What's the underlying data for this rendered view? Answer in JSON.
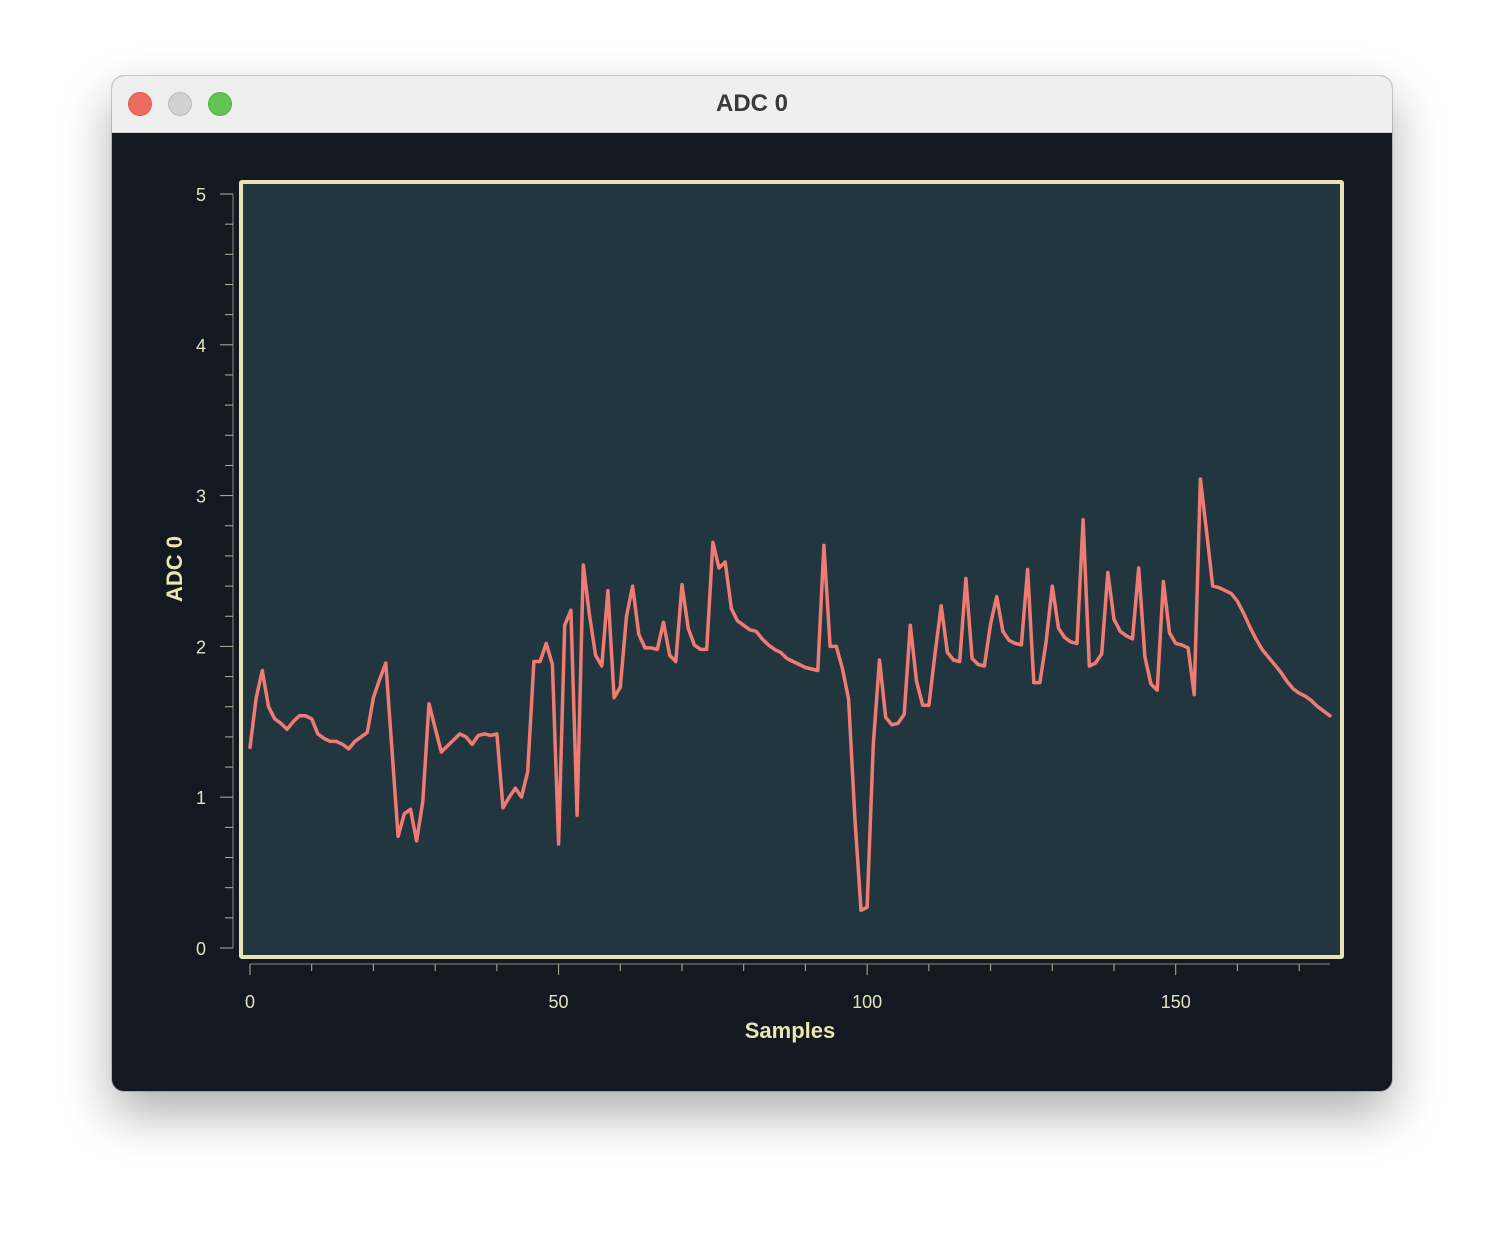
{
  "window": {
    "title": "ADC 0"
  },
  "colors": {
    "window_bg": "#131920",
    "plot_bg": "#223640",
    "frame": "#e8e3b5",
    "line": "#f07b72",
    "label": "#ebe5b0"
  },
  "chart_data": {
    "type": "line",
    "title": "",
    "xlabel": "Samples",
    "ylabel": "ADC 0",
    "xlim": [
      0,
      175
    ],
    "ylim": [
      0,
      5
    ],
    "x_ticks": [
      0,
      50,
      100,
      150
    ],
    "y_ticks": [
      0,
      1,
      2,
      3,
      4,
      5
    ],
    "grid": false,
    "series": [
      {
        "values": [
          1.33,
          1.66,
          1.84,
          1.6,
          1.52,
          1.49,
          1.45,
          1.5,
          1.54,
          1.54,
          1.52,
          1.42,
          1.39,
          1.37,
          1.37,
          1.35,
          1.32,
          1.37,
          1.4,
          1.43,
          1.66,
          1.78,
          1.89,
          1.32,
          0.74,
          0.89,
          0.92,
          0.71,
          0.97,
          1.62,
          1.46,
          1.3,
          1.34,
          1.38,
          1.42,
          1.4,
          1.35,
          1.41,
          1.42,
          1.41,
          1.42,
          0.93,
          1.0,
          1.06,
          1.0,
          1.17,
          1.9,
          1.9,
          2.02,
          1.88,
          0.69,
          2.14,
          2.24,
          0.88,
          2.54,
          2.21,
          1.94,
          1.87,
          2.37,
          1.66,
          1.73,
          2.2,
          2.4,
          2.08,
          1.99,
          1.99,
          1.98,
          2.16,
          1.94,
          1.9,
          2.41,
          2.12,
          2.01,
          1.98,
          1.98,
          2.69,
          2.52,
          2.56,
          2.25,
          2.17,
          2.14,
          2.11,
          2.1,
          2.05,
          2.01,
          1.98,
          1.96,
          1.92,
          1.9,
          1.88,
          1.86,
          1.85,
          1.84,
          2.67,
          2.0,
          2.0,
          1.85,
          1.65,
          0.87,
          0.25,
          0.27,
          1.35,
          1.91,
          1.53,
          1.48,
          1.49,
          1.55,
          2.14,
          1.77,
          1.61,
          1.61,
          1.95,
          2.27,
          1.96,
          1.91,
          1.9,
          2.45,
          1.92,
          1.88,
          1.87,
          2.15,
          2.33,
          2.1,
          2.04,
          2.02,
          2.01,
          2.51,
          1.76,
          1.76,
          2.03,
          2.4,
          2.12,
          2.06,
          2.03,
          2.02,
          2.84,
          1.87,
          1.89,
          1.95,
          2.49,
          2.18,
          2.1,
          2.07,
          2.05,
          2.52,
          1.93,
          1.75,
          1.71,
          2.43,
          2.09,
          2.02,
          2.01,
          1.99,
          1.68,
          3.11,
          2.76,
          2.4,
          2.39,
          2.37,
          2.35,
          2.3,
          2.22,
          2.13,
          2.05,
          1.98,
          1.93,
          1.88,
          1.83,
          1.77,
          1.72,
          1.69,
          1.67,
          1.64,
          1.6,
          1.57,
          1.54
        ]
      }
    ]
  }
}
